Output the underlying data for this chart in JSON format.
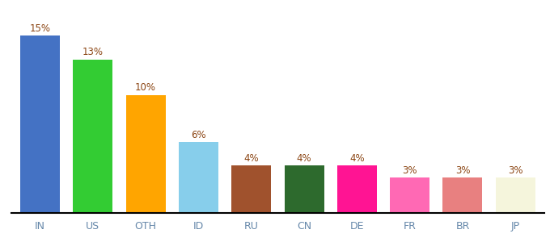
{
  "categories": [
    "IN",
    "US",
    "OTH",
    "ID",
    "RU",
    "CN",
    "DE",
    "FR",
    "BR",
    "JP"
  ],
  "values": [
    15,
    13,
    10,
    6,
    4,
    4,
    4,
    3,
    3,
    3
  ],
  "bar_colors": [
    "#4472C4",
    "#33CC33",
    "#FFA500",
    "#87CEEB",
    "#A0522D",
    "#2D6A2D",
    "#FF1493",
    "#FF69B4",
    "#E88080",
    "#F5F5DC"
  ],
  "ylim": [
    0,
    17
  ],
  "label_color": "#8B4513",
  "background_color": "#ffffff",
  "bar_width": 0.75,
  "label_fontsize": 8.5,
  "tick_fontsize": 9
}
